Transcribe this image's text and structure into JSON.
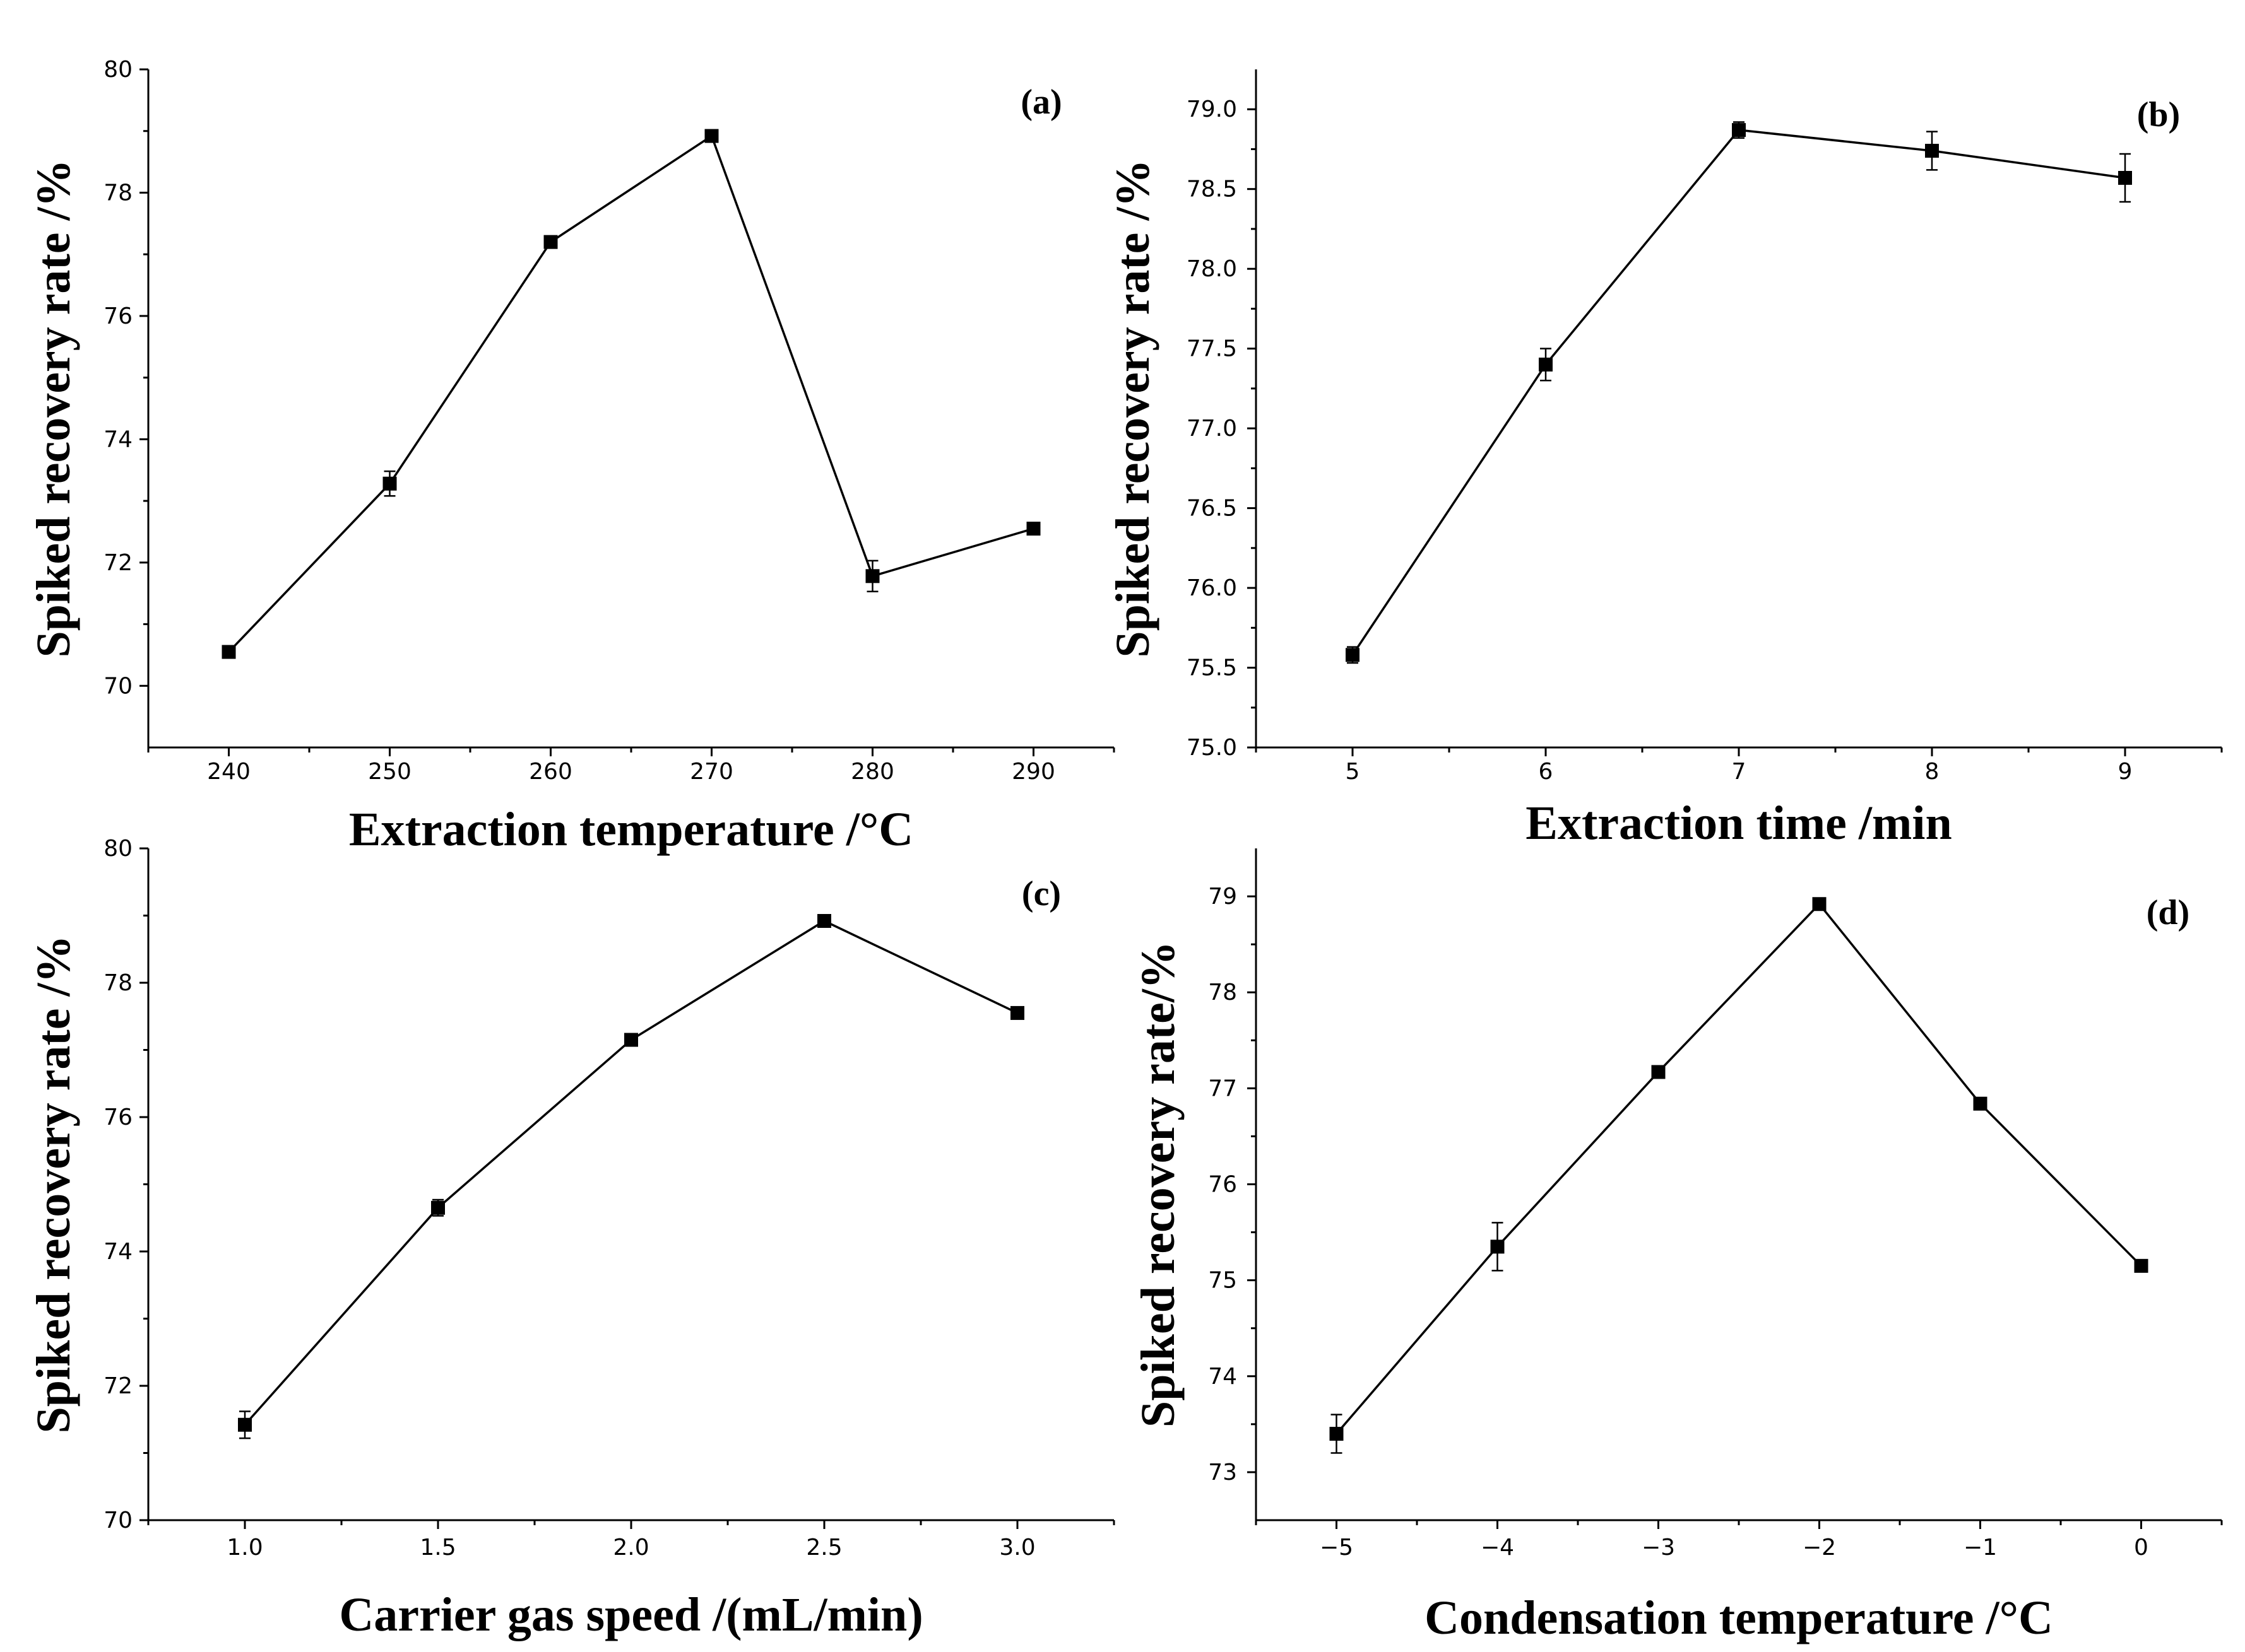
{
  "chart_data": [
    {
      "type": "line",
      "panel_label": "(a)",
      "title": "",
      "xlabel": "Extraction temperature /°C",
      "ylabel": "Spiked recovery rate /%",
      "x": [
        240,
        250,
        260,
        270,
        280,
        290
      ],
      "xtick_labels": [
        "240",
        "250",
        "260",
        "270",
        "280",
        "290"
      ],
      "series": [
        {
          "name": "Spiked recovery rate",
          "values": [
            70.55,
            73.28,
            77.2,
            78.92,
            71.78,
            72.55
          ],
          "errors": [
            0.05,
            0.2,
            0.05,
            0.05,
            0.25,
            0.05
          ]
        }
      ],
      "xlim": [
        235,
        295
      ],
      "ylim": [
        69,
        80
      ],
      "yticks": [
        70,
        72,
        74,
        76,
        78,
        80
      ],
      "ytick_labels": [
        "70",
        "72",
        "74",
        "76",
        "78",
        "80"
      ]
    },
    {
      "type": "line",
      "panel_label": "(b)",
      "title": "",
      "xlabel": "Extraction time /min",
      "ylabel": "Spiked recovery rate /%",
      "x": [
        5,
        6,
        7,
        8,
        9
      ],
      "xtick_labels": [
        "5",
        "6",
        "7",
        "8",
        "9"
      ],
      "series": [
        {
          "name": "Spiked recovery rate",
          "values": [
            75.58,
            77.4,
            78.87,
            78.74,
            78.57
          ],
          "errors": [
            0.05,
            0.1,
            0.05,
            0.12,
            0.15
          ]
        }
      ],
      "xlim": [
        4.5,
        9.5
      ],
      "ylim": [
        75.0,
        79.25
      ],
      "yticks": [
        75.0,
        75.5,
        76.0,
        76.5,
        77.0,
        77.5,
        78.0,
        78.5,
        79.0
      ],
      "ytick_labels": [
        "75.0",
        "75.5",
        "76.0",
        "76.5",
        "77.0",
        "77.5",
        "78.0",
        "78.5",
        "79.0"
      ]
    },
    {
      "type": "line",
      "panel_label": "(c)",
      "title": "",
      "xlabel": "Carrier gas speed /(mL/min)",
      "ylabel": "Spiked recovery rate /%",
      "x": [
        1.0,
        1.5,
        2.0,
        2.5,
        3.0
      ],
      "xtick_labels": [
        "1.0",
        "1.5",
        "2.0",
        "2.5",
        "3.0"
      ],
      "series": [
        {
          "name": "Spiked recovery rate",
          "values": [
            71.42,
            74.65,
            77.15,
            78.92,
            77.55
          ],
          "errors": [
            0.2,
            0.12,
            0.05,
            0.05,
            0.05
          ]
        }
      ],
      "xlim": [
        0.75,
        3.25
      ],
      "ylim": [
        70,
        80
      ],
      "yticks": [
        70,
        72,
        74,
        76,
        78,
        80
      ],
      "ytick_labels": [
        "70",
        "72",
        "74",
        "76",
        "78",
        "80"
      ]
    },
    {
      "type": "line",
      "panel_label": "(d)",
      "title": "",
      "xlabel": "Condensation temperature /°C",
      "ylabel": "Spiked recovery rate/%",
      "x": [
        -5,
        -4,
        -3,
        -2,
        -1,
        0
      ],
      "xtick_labels": [
        "−5",
        "−4",
        "−3",
        "−2",
        "−1",
        "0"
      ],
      "series": [
        {
          "name": "Spiked recovery rate",
          "values": [
            73.4,
            75.35,
            77.17,
            78.92,
            76.84,
            75.15
          ],
          "errors": [
            0.2,
            0.25,
            0.05,
            0.05,
            0.05,
            0.05
          ]
        }
      ],
      "xlim": [
        -5.5,
        0.5
      ],
      "ylim": [
        72.5,
        79.5
      ],
      "yticks": [
        73,
        74,
        75,
        76,
        77,
        78,
        79
      ],
      "ytick_labels": [
        "73",
        "74",
        "75",
        "76",
        "77",
        "78",
        "79"
      ]
    }
  ]
}
